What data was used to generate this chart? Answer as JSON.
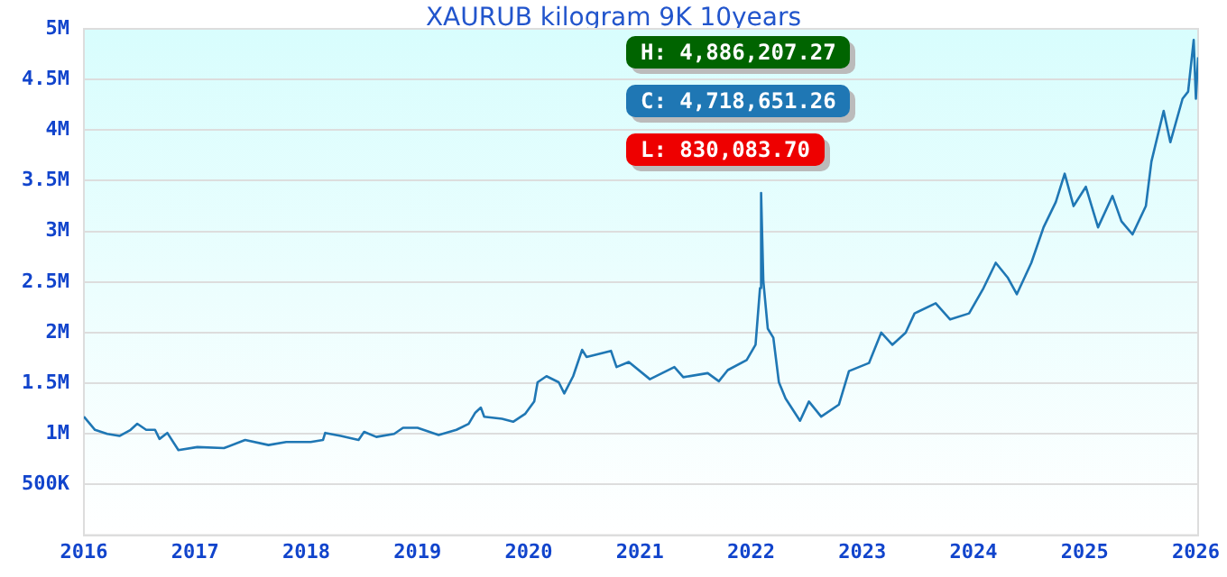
{
  "chart_data": {
    "type": "line",
    "title": "XAURUB kilogram 9K 10years",
    "xlim": [
      2016,
      2026.02
    ],
    "xticks": [
      2016,
      2017,
      2018,
      2019,
      2020,
      2021,
      2022,
      2023,
      2024,
      2025,
      2026
    ],
    "ylim": [
      0,
      5000000
    ],
    "yticks": [
      {
        "value": 500000,
        "label": "500K"
      },
      {
        "value": 1000000,
        "label": "1M"
      },
      {
        "value": 1500000,
        "label": "1.5M"
      },
      {
        "value": 2000000,
        "label": "2M"
      },
      {
        "value": 2500000,
        "label": "2.5M"
      },
      {
        "value": 3000000,
        "label": "3M"
      },
      {
        "value": 3500000,
        "label": "3.5M"
      },
      {
        "value": 4000000,
        "label": "4M"
      },
      {
        "value": 4500000,
        "label": "4.5M"
      },
      {
        "value": 5000000,
        "label": "5M"
      }
    ],
    "grid": "y",
    "legend": false,
    "marker": "none",
    "line_style": "solid",
    "annotations": [
      "H: 4,886,207.27",
      "C: 4,718,651.26",
      "L: 830,083.70"
    ],
    "series": [
      {
        "color": "#1f77b4",
        "x": [
          2016.0,
          2016.1,
          2016.21,
          2016.32,
          2016.42,
          2016.48,
          2016.56,
          2016.64,
          2016.68,
          2016.75,
          2016.85,
          2017.02,
          2017.26,
          2017.45,
          2017.66,
          2017.82,
          2018.04,
          2018.15,
          2018.17,
          2018.31,
          2018.47,
          2018.52,
          2018.63,
          2018.79,
          2018.87,
          2019.0,
          2019.19,
          2019.35,
          2019.46,
          2019.52,
          2019.57,
          2019.6,
          2019.76,
          2019.86,
          2019.97,
          2020.05,
          2020.08,
          2020.16,
          2020.27,
          2020.32,
          2020.4,
          2020.48,
          2020.52,
          2020.74,
          2020.79,
          2020.9,
          2021.09,
          2021.31,
          2021.39,
          2021.61,
          2021.71,
          2021.79,
          2021.96,
          2022.04,
          2022.08,
          2022.09,
          2022.11,
          2022.15,
          2022.2,
          2022.25,
          2022.31,
          2022.44,
          2022.52,
          2022.63,
          2022.79,
          2022.88,
          2023.06,
          2023.17,
          2023.27,
          2023.39,
          2023.47,
          2023.66,
          2023.79,
          2023.96,
          2024.09,
          2024.2,
          2024.31,
          2024.39,
          2024.52,
          2024.63,
          2024.74,
          2024.82,
          2024.9,
          2025.01,
          2025.12,
          2025.25,
          2025.33,
          2025.43,
          2025.55,
          2025.6,
          2025.71,
          2025.77,
          2025.88,
          2025.93,
          2025.98,
          2026.0,
          2026.02
        ],
        "values": [
          1170000,
          1040000,
          1000000,
          980000,
          1040000,
          1100000,
          1040000,
          1040000,
          950000,
          1010000,
          840000,
          870000,
          860000,
          940000,
          890000,
          920000,
          920000,
          940000,
          1010000,
          980000,
          940000,
          1020000,
          970000,
          1000000,
          1060000,
          1060000,
          990000,
          1040000,
          1100000,
          1210000,
          1260000,
          1170000,
          1150000,
          1120000,
          1200000,
          1320000,
          1510000,
          1570000,
          1510000,
          1400000,
          1570000,
          1830000,
          1760000,
          1820000,
          1660000,
          1710000,
          1540000,
          1660000,
          1560000,
          1600000,
          1520000,
          1630000,
          1730000,
          1880000,
          2440000,
          3380000,
          2510000,
          2040000,
          1950000,
          1510000,
          1350000,
          1130000,
          1320000,
          1170000,
          1290000,
          1620000,
          1700000,
          2000000,
          1880000,
          2000000,
          2190000,
          2290000,
          2130000,
          2190000,
          2440000,
          2690000,
          2540000,
          2380000,
          2690000,
          3040000,
          3290000,
          3570000,
          3250000,
          3440000,
          3040000,
          3350000,
          3100000,
          2970000,
          3250000,
          3690000,
          4190000,
          3880000,
          4310000,
          4380000,
          4890000,
          4310000,
          4720000
        ]
      }
    ]
  }
}
